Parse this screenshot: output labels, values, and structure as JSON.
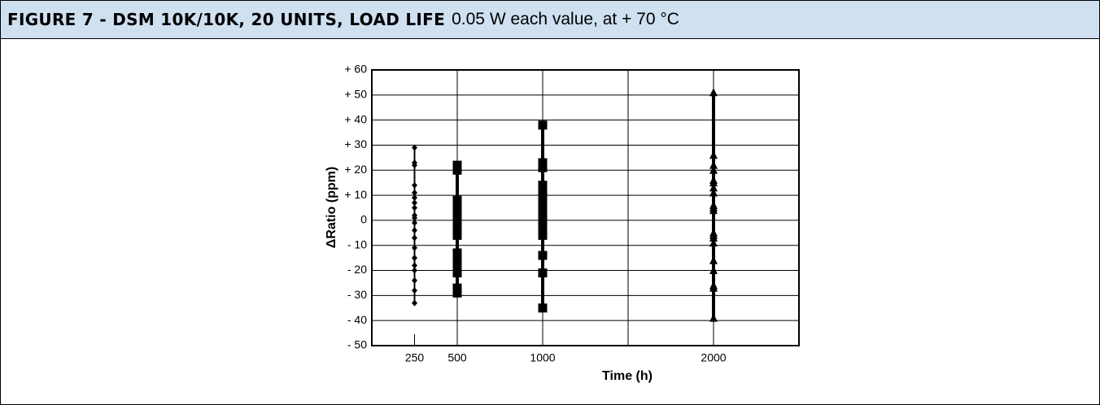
{
  "chart_data": {
    "type": "scatter",
    "title": "FIGURE 7 - DSM 10K/10K, 20 UNITS, LOAD LIFE",
    "subtitle": "0.05 W each value, at + 70 °C",
    "xlabel": "Time (h)",
    "ylabel": "ΔRatio (ppm)",
    "xlim": [
      0,
      2500
    ],
    "xticks": [
      250,
      500,
      1000,
      2000
    ],
    "x_grid": [
      500,
      1000,
      1500,
      2000
    ],
    "ylim": [
      -50,
      60
    ],
    "yticks": [
      {
        "value": -50,
        "label": "- 50"
      },
      {
        "value": -40,
        "label": "- 40"
      },
      {
        "value": -30,
        "label": "- 30"
      },
      {
        "value": -20,
        "label": "- 20"
      },
      {
        "value": -10,
        "label": "- 10"
      },
      0,
      {
        "value": 10,
        "label": "+ 10"
      },
      {
        "value": 20,
        "label": "+ 20"
      },
      {
        "value": 30,
        "label": "+ 30"
      },
      {
        "value": 40,
        "label": "+ 40"
      },
      {
        "value": 50,
        "label": "+ 50"
      },
      {
        "value": 60,
        "label": "+ 60"
      }
    ],
    "grid": true,
    "color": "#000000",
    "series": [
      {
        "x": 250,
        "marker": "diamond",
        "values": [
          29,
          23,
          22,
          14,
          11,
          9,
          7,
          5,
          2,
          1,
          -1,
          -4,
          -7,
          -11,
          -15,
          -18,
          -20,
          -24,
          -28,
          -33
        ]
      },
      {
        "x": 500,
        "marker": "square",
        "values": [
          22,
          21,
          20,
          8,
          6,
          4,
          1,
          0,
          -1,
          -3,
          -4,
          -6,
          -13,
          -15,
          -17,
          -19,
          -20,
          -21,
          -27,
          -29
        ]
      },
      {
        "x": 1000,
        "marker": "square",
        "values": [
          38,
          23,
          21,
          14,
          13,
          12,
          10,
          8,
          6,
          4,
          2,
          1,
          0,
          -1,
          -3,
          -5,
          -6,
          -14,
          -21,
          -35
        ]
      },
      {
        "x": 2000,
        "marker": "triangle",
        "values": [
          51,
          26,
          22,
          20,
          16,
          15,
          13,
          11,
          6,
          5,
          4,
          -5,
          -6,
          -7,
          -9,
          -16,
          -20,
          -26,
          -27,
          -39
        ]
      }
    ]
  }
}
